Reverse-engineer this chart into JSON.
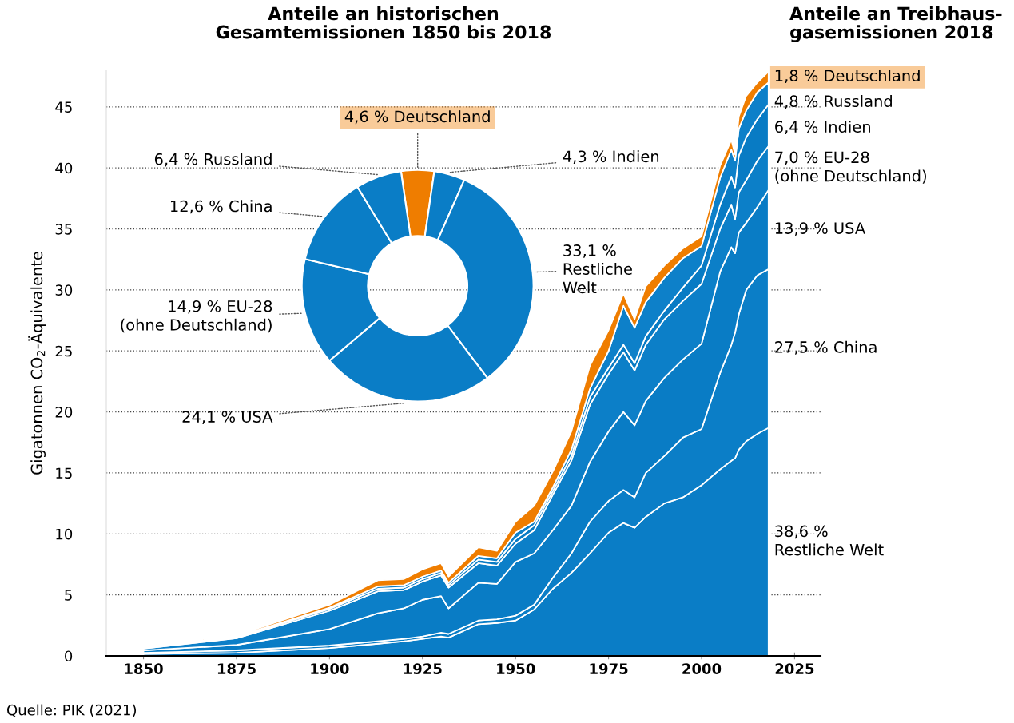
{
  "chart_data": [
    {
      "type": "area",
      "stacked": true,
      "title": "Anteile an Treibhaus-\ngasemissionen 2018",
      "ylabel": "Gigatonnen CO$_{2}$-Äquivalente",
      "x": [
        1850,
        1875,
        1900,
        1913,
        1920,
        1925,
        1930,
        1932,
        1940,
        1945,
        1950,
        1955,
        1960,
        1965,
        1970,
        1975,
        1979,
        1982,
        1985,
        1990,
        1995,
        2000,
        2005,
        2008,
        2009,
        2010,
        2012,
        2015,
        2018
      ],
      "xlim": [
        1840,
        2032
      ],
      "xticks": [
        1850,
        1875,
        1900,
        1925,
        1950,
        1975,
        2000,
        2025
      ],
      "ylim": [
        0,
        48
      ],
      "yticks": [
        0,
        5,
        10,
        15,
        20,
        25,
        30,
        35,
        40,
        45
      ],
      "grid": "y",
      "series": [
        {
          "name": "38,6 %\nRestliche Welt",
          "color": "#0a7dc6",
          "values": [
            0.15,
            0.26,
            0.65,
            1.0,
            1.2,
            1.4,
            1.6,
            1.5,
            2.6,
            2.7,
            2.9,
            3.8,
            5.5,
            6.8,
            8.4,
            10.1,
            10.9,
            10.5,
            11.4,
            12.5,
            13.0,
            14.0,
            15.3,
            16.0,
            16.2,
            16.9,
            17.6,
            18.2,
            18.7
          ]
        },
        {
          "name": "27,5 % China",
          "color": "#0b7ec7",
          "values": [
            0.1,
            0.2,
            0.2,
            0.2,
            0.2,
            0.2,
            0.3,
            0.3,
            0.3,
            0.3,
            0.4,
            0.4,
            0.9,
            1.6,
            2.6,
            2.6,
            2.7,
            2.5,
            3.6,
            3.9,
            4.9,
            4.6,
            7.9,
            9.5,
            10.3,
            11.1,
            12.4,
            13.0,
            13.0
          ]
        },
        {
          "name": "13,9 % USA",
          "color": "#097cc5",
          "values": [
            0.2,
            0.44,
            1.35,
            2.3,
            2.5,
            3.0,
            3.0,
            2.1,
            3.1,
            2.9,
            4.4,
            4.2,
            3.9,
            3.9,
            4.9,
            5.7,
            6.4,
            5.9,
            5.9,
            6.4,
            6.4,
            7.0,
            8.3,
            8.0,
            6.5,
            6.7,
            5.5,
            5.6,
            6.5
          ]
        },
        {
          "name": "7,0 % EU-28\n(ohne Deutschland)",
          "color": "#0c7fc8",
          "values": [
            0.15,
            0.55,
            1.5,
            1.8,
            1.5,
            1.5,
            1.7,
            1.7,
            1.6,
            1.5,
            1.5,
            1.9,
            2.9,
            3.7,
            4.7,
            4.7,
            4.9,
            4.5,
            4.6,
            4.8,
            4.8,
            4.9,
            3.5,
            3.5,
            2.8,
            3.3,
            3.5,
            3.8,
            3.6
          ]
        },
        {
          "name": "6,4 % Indien",
          "color": "#087bc4",
          "values": [
            0.05,
            0.1,
            0.15,
            0.2,
            0.2,
            0.2,
            0.2,
            0.2,
            0.3,
            0.3,
            0.4,
            0.4,
            0.3,
            0.4,
            0.6,
            0.5,
            0.6,
            0.6,
            0.7,
            0.7,
            1.1,
            1.5,
            2.0,
            2.3,
            2.6,
            3.0,
            3.5,
            3.4,
            3.4
          ]
        },
        {
          "name": "4,8 % Russland",
          "color": "#0d80c9",
          "values": [
            0.05,
            0.05,
            0.1,
            0.2,
            0.2,
            0.2,
            0.2,
            0.2,
            0.3,
            0.3,
            0.5,
            0.3,
            0.3,
            0.5,
            0.7,
            1.4,
            3.2,
            2.9,
            2.8,
            2.7,
            2.4,
            1.6,
            2.2,
            2.2,
            2.2,
            2.2,
            2.2,
            2.2,
            1.8
          ]
        },
        {
          "name": "1,8 % Deutschland",
          "color": "#ef7d00",
          "values": [
            0.1,
            0.1,
            0.25,
            0.5,
            0.5,
            0.6,
            0.6,
            0.5,
            0.7,
            0.6,
            0.9,
            1.3,
            1.3,
            1.5,
            1.9,
            1.7,
            1.0,
            0.7,
            1.3,
            1.0,
            0.8,
            0.8,
            1.0,
            0.8,
            0.5,
            1.0,
            1.2,
            0.8,
            0.9
          ]
        }
      ],
      "annotations": [
        "Quelle: PIK (2021)"
      ]
    },
    {
      "type": "donut",
      "title": "Anteile an historischen\nGesamtemissionen 1850 bis 2018",
      "categories": [
        "Deutschland",
        "Indien",
        "Restliche\nWelt",
        "USA",
        "EU-28\n(ohne Deutschland)",
        "China",
        "Russland"
      ],
      "values": [
        4.6,
        4.3,
        33.1,
        24.1,
        14.9,
        12.6,
        6.4
      ],
      "value_labels": [
        "4,6 %",
        "4,3 %",
        "33,1 %",
        "24,1 %",
        "14,9 %",
        "12,6 %",
        "6,4 %"
      ],
      "colors": [
        "#ef7d00",
        "#0a7dc6",
        "#0a7dc6",
        "#0a7dc6",
        "#0a7dc6",
        "#0a7dc6",
        "#0a7dc6"
      ]
    }
  ]
}
